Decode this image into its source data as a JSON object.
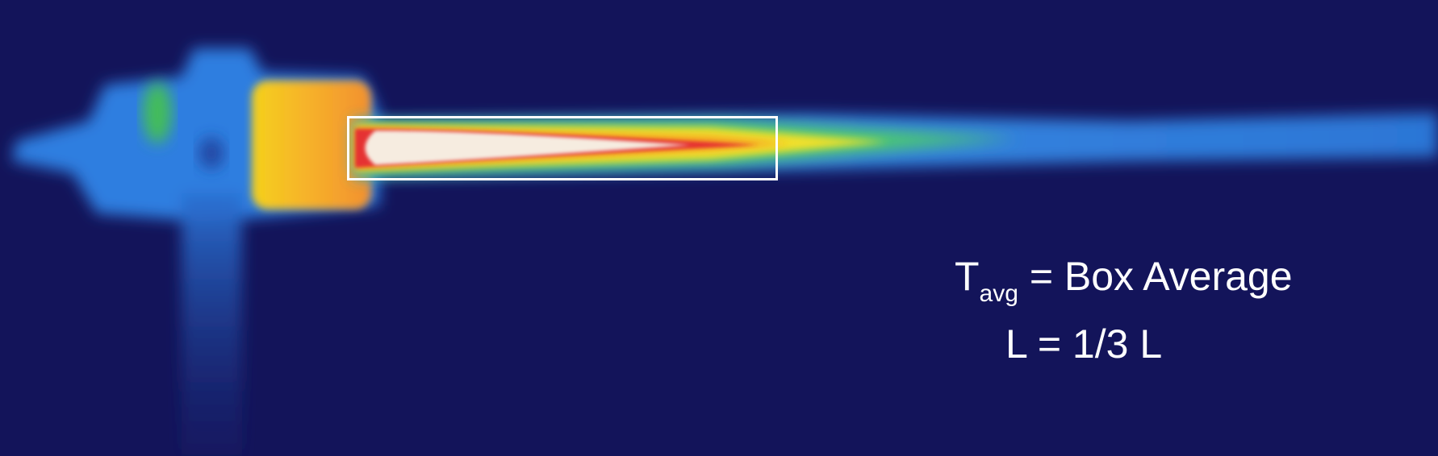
{
  "annotations": {
    "line1": {
      "symbol": "T",
      "subscript": "avg",
      "rest": " = Box Average"
    },
    "line2": "L = 1/3 L"
  },
  "colors": {
    "background": "#13145a",
    "box_border": "#ffffff",
    "text": "#ffffff"
  }
}
